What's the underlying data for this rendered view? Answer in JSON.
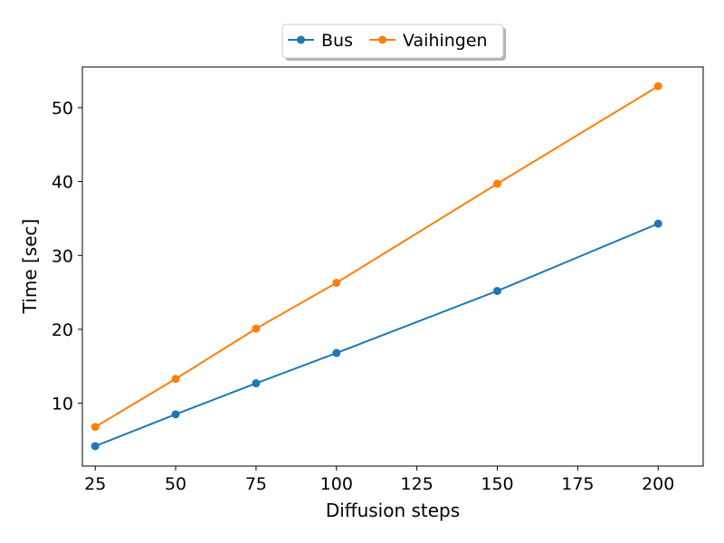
{
  "chart_data": {
    "type": "line",
    "xlabel": "Diffusion steps",
    "ylabel": "Time [sec]",
    "xlim": [
      21,
      214
    ],
    "ylim": [
      1.5,
      55.5
    ],
    "xticks": [
      25,
      50,
      75,
      100,
      125,
      150,
      175,
      200
    ],
    "yticks": [
      10,
      20,
      30,
      40,
      50
    ],
    "grid": false,
    "legend": {
      "placement": "top-center-outside",
      "columns": 2
    },
    "x": [
      25,
      50,
      75,
      100,
      150,
      200
    ],
    "series": [
      {
        "name": "Bus",
        "color": "#1f77b4",
        "marker": "circle",
        "values": [
          4.2,
          8.5,
          12.7,
          16.8,
          25.2,
          34.3
        ]
      },
      {
        "name": "Vaihingen",
        "color": "#ff7f0e",
        "marker": "circle",
        "values": [
          6.8,
          13.3,
          20.1,
          26.3,
          39.7,
          52.9
        ]
      }
    ]
  }
}
